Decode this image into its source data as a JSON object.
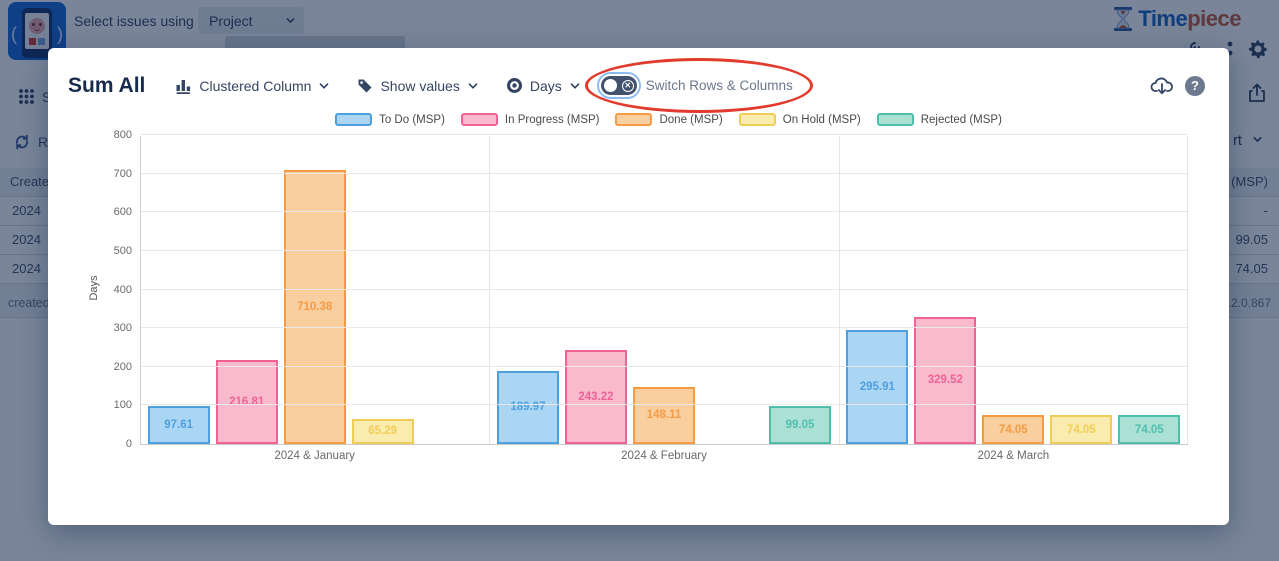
{
  "background": {
    "topbar": {
      "select_issues_label": "Select issues using",
      "project_dropdown": "Project"
    },
    "logo": {
      "time": "Time",
      "piece": "piece"
    },
    "left_panel": {
      "status_fragment": "St",
      "rows_fragment": "Ro",
      "created_header": "Created",
      "rows": [
        "2024",
        "2024",
        "2024"
      ],
      "footer": "created >"
    },
    "right_panel": {
      "export_fragment": "rt",
      "msp_header": "(MSP)",
      "values": [
        "-",
        "99.05",
        "74.05"
      ],
      "version": "3.2.0.867"
    }
  },
  "modal": {
    "title": "Sum All",
    "chart_type_label": "Clustered Column",
    "show_values_label": "Show values",
    "unit_label": "Days",
    "switch_label": "Switch Rows & Columns",
    "annotation_color": "#e23b2e",
    "help_icon_glyph": "?"
  },
  "chart_data": {
    "type": "bar",
    "title": "",
    "categories": [
      "2024 & January",
      "2024 & February",
      "2024 & March"
    ],
    "series": [
      {
        "name": "To Do (MSP)",
        "values": [
          97.61,
          189.97,
          295.91
        ],
        "stroke": "#4d9fde",
        "fill": "#aad6f3"
      },
      {
        "name": "In Progress (MSP)",
        "values": [
          216.81,
          243.22,
          329.52
        ],
        "stroke": "#ef6292",
        "fill": "#f9bacd"
      },
      {
        "name": "Done (MSP)",
        "values": [
          710.38,
          148.11,
          74.05
        ],
        "stroke": "#f59b43",
        "fill": "#facfa0"
      },
      {
        "name": "On Hold (MSP)",
        "values": [
          65.29,
          null,
          74.05
        ],
        "stroke": "#f0cd55",
        "fill": "#faebae"
      },
      {
        "name": "Rejected (MSP)",
        "values": [
          null,
          99.05,
          74.05
        ],
        "stroke": "#4fbfac",
        "fill": "#abe0d5"
      }
    ],
    "xlabel": "",
    "ylabel": "Days",
    "ylim": [
      0,
      800
    ],
    "ytick_step": 100,
    "grid": true,
    "legend_position": "top",
    "value_labels": "two-decimals"
  }
}
